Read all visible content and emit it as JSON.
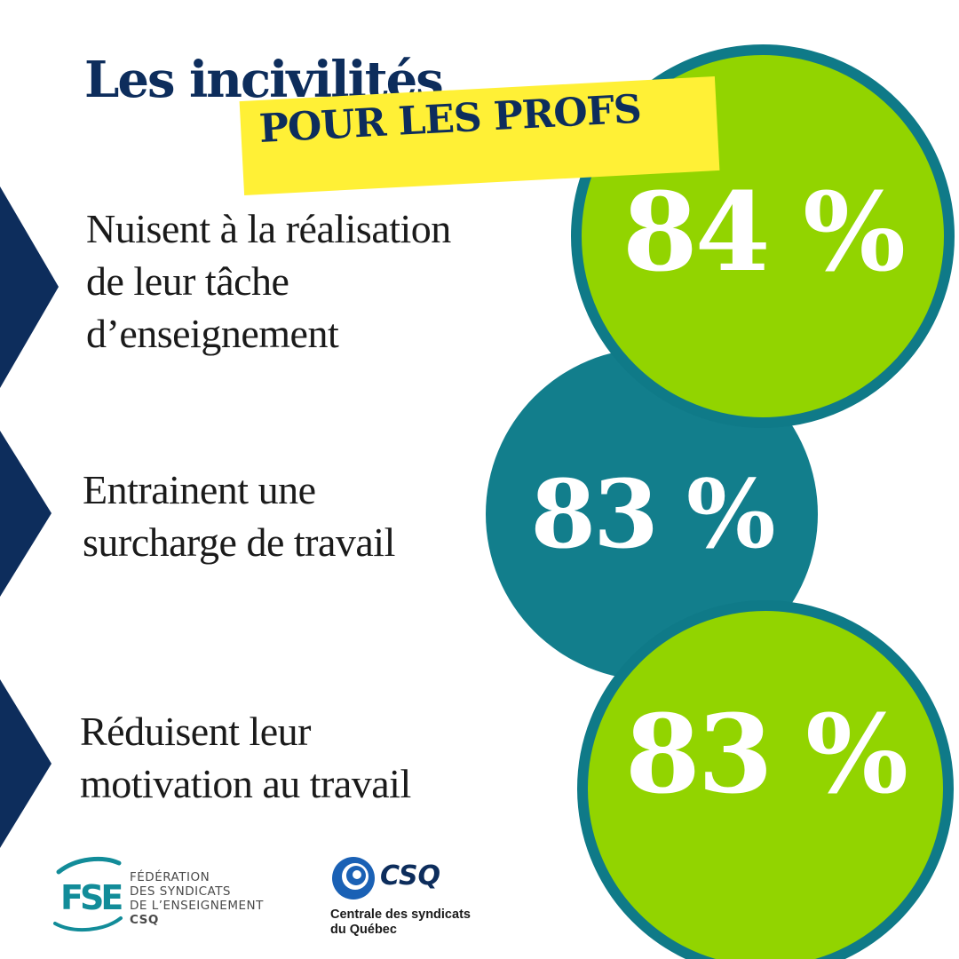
{
  "colors": {
    "navy": "#0d2d5c",
    "lime": "#92d400",
    "teal": "#127e8c",
    "teal_dark": "#0f7a88",
    "yellow": "#fff036",
    "fse_teal": "#128c99",
    "csq_blue": "#1a61b5",
    "text": "#1a1a1a",
    "white": "#ffffff"
  },
  "title": {
    "line1": "Les incivilités",
    "line2": "POUR LES PROFS"
  },
  "stats": [
    {
      "percent": "84 %",
      "lines": [
        "Nuisent à la réalisation",
        "de leur tâche",
        "d’enseignement"
      ]
    },
    {
      "percent": "83 %",
      "lines": [
        "Entrainent une",
        "surcharge de travail"
      ]
    },
    {
      "percent": "83 %",
      "lines": [
        "Réduisent leur",
        "motivation au travail"
      ]
    }
  ],
  "logos": {
    "fse": {
      "letters": "FSE",
      "lines": [
        "FÉDÉRATION",
        "DES SYNDICATS",
        "DE L’ENSEIGNEMENT"
      ],
      "sub": "CSQ"
    },
    "csq": {
      "name": "CSQ",
      "lines": [
        "Centrale des syndicats",
        "du Québec"
      ]
    }
  }
}
